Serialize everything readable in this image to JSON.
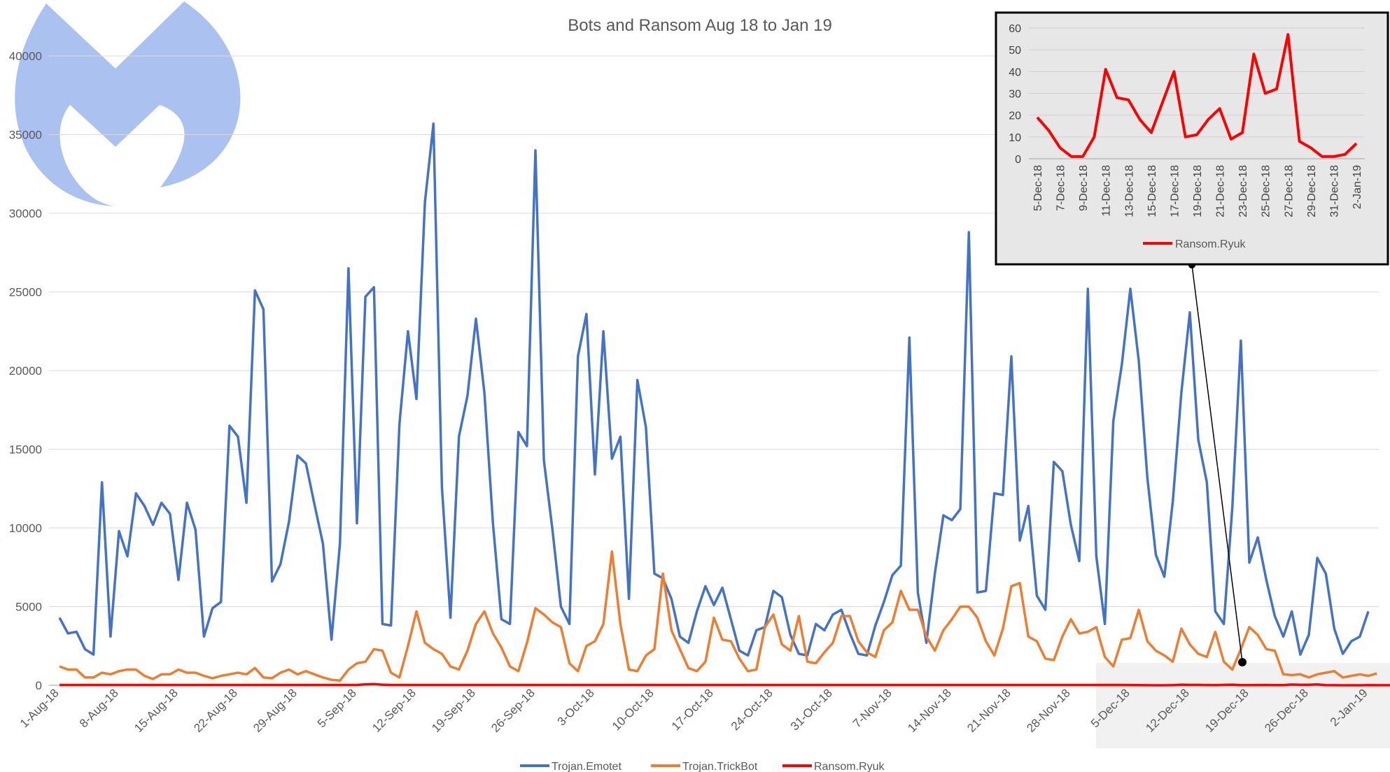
{
  "chart_data": [
    {
      "type": "line",
      "title": "Bots and Ransom Aug 18 to Jan 19",
      "x_tick_labels": [
        "1-Aug-18",
        "8-Aug-18",
        "15-Aug-18",
        "22-Aug-18",
        "29-Aug-18",
        "5-Sep-18",
        "12-Sep-18",
        "19-Sep-18",
        "26-Sep-18",
        "3-Oct-18",
        "10-Oct-18",
        "17-Oct-18",
        "24-Oct-18",
        "31-Oct-18",
        "7-Nov-18",
        "14-Nov-18",
        "21-Nov-18",
        "28-Nov-18",
        "5-Dec-18",
        "12-Dec-18",
        "19-Dec-18",
        "26-Dec-18",
        "2-Jan-19"
      ],
      "y_ticks": [
        0,
        5000,
        10000,
        15000,
        20000,
        25000,
        30000,
        35000,
        40000
      ],
      "y_tick_labels": [
        "0",
        "5000",
        "10000",
        "15000",
        "20000",
        "25000",
        "30000",
        "35000",
        "40000"
      ],
      "ylim": [
        0,
        40000
      ],
      "grid": true,
      "legend_position": "bottom",
      "series": [
        {
          "name": "Trojan.Emotet",
          "color": "#4472C4",
          "values": [
            4300,
            3300,
            3400,
            2300,
            1950,
            12900,
            3100,
            9800,
            8200,
            12200,
            11400,
            10200,
            11600,
            10900,
            6700,
            11600,
            9900,
            3100,
            4900,
            5300,
            16500,
            15800,
            11600,
            25100,
            23900,
            6600,
            7700,
            10400,
            14600,
            14100,
            11500,
            9000,
            2900,
            9000,
            26500,
            10300,
            24700,
            25300,
            3900,
            3800,
            16600,
            22500,
            18200,
            30700,
            35700,
            12600,
            4300,
            15800,
            18400,
            23300,
            18600,
            10300,
            4200,
            3900,
            16100,
            15200,
            34000,
            14300,
            9900,
            5000,
            3900,
            20900,
            23600,
            13400,
            22500,
            14400,
            15800,
            5500,
            19400,
            16400,
            7100,
            6800,
            5500,
            3100,
            2700,
            4700,
            6300,
            5100,
            6200,
            4200,
            2200,
            1900,
            3500,
            3700,
            6000,
            5600,
            3200,
            2000,
            1900,
            3900,
            3500,
            4500,
            4800,
            3300,
            2000,
            1900,
            3800,
            5300,
            7000,
            7600,
            22100,
            5900,
            2700,
            7100,
            10800,
            10500,
            11200,
            28800,
            5900,
            6000,
            12200,
            12100,
            20900,
            9200,
            11400,
            5700,
            4800,
            14200,
            13600,
            10200,
            7900,
            25200,
            8200,
            3900,
            16800,
            20400,
            25200,
            20600,
            13200,
            8300,
            6900,
            11700,
            18600,
            23700,
            15600,
            12900,
            4700,
            3900,
            11300,
            21900,
            7800,
            9400,
            6700,
            4400,
            3100,
            4700,
            1950,
            3200,
            8100,
            7100,
            3600,
            2000,
            2800,
            3100,
            4700
          ]
        },
        {
          "name": "Trojan.TrickBot",
          "color": "#ED7D31",
          "values": [
            1200,
            1000,
            1000,
            500,
            500,
            800,
            700,
            900,
            1000,
            1000,
            600,
            400,
            700,
            700,
            1000,
            800,
            800,
            600,
            450,
            600,
            700,
            800,
            700,
            1100,
            500,
            450,
            800,
            1000,
            700,
            900,
            700,
            500,
            350,
            300,
            1000,
            1400,
            1500,
            2300,
            2200,
            800,
            500,
            2500,
            4700,
            2700,
            2300,
            2000,
            1200,
            1000,
            2200,
            3900,
            4700,
            3300,
            2400,
            1200,
            900,
            2700,
            4900,
            4500,
            4000,
            3700,
            1400,
            900,
            2500,
            2800,
            3900,
            8500,
            3900,
            1000,
            900,
            1900,
            2300,
            7100,
            3500,
            2300,
            1100,
            900,
            1500,
            4300,
            2900,
            2800,
            1700,
            900,
            1000,
            3700,
            4500,
            2600,
            2200,
            4400,
            1500,
            1400,
            2100,
            2700,
            4400,
            4400,
            2800,
            2100,
            1800,
            3500,
            4000,
            6000,
            4800,
            4800,
            3100,
            2200,
            3500,
            4200,
            5000,
            5000,
            4300,
            2800,
            1900,
            3600,
            6300,
            6500,
            3100,
            2800,
            1700,
            1600,
            3100,
            4200,
            3300,
            3400,
            3700,
            1800,
            1200,
            2900,
            3000,
            4800,
            2800,
            2200,
            1900,
            1500,
            3600,
            2600,
            2000,
            1800,
            3400,
            1500,
            1000,
            2300,
            3700,
            3200,
            2300,
            2200,
            700,
            650,
            700,
            500,
            700,
            800,
            900,
            500,
            600,
            700,
            600,
            750
          ]
        },
        {
          "name": "Ransom.Ryuk",
          "color": "#FF0000",
          "values": [
            20,
            20,
            20,
            20,
            20,
            20,
            20,
            20,
            20,
            20,
            20,
            20,
            20,
            20,
            20,
            20,
            20,
            20,
            20,
            20,
            20,
            20,
            20,
            20,
            20,
            20,
            20,
            20,
            20,
            20,
            20,
            20,
            20,
            20,
            20,
            20,
            60,
            80,
            40,
            20,
            20,
            20,
            20,
            20,
            20,
            20,
            20,
            20,
            20,
            20,
            20,
            20,
            20,
            20,
            20,
            20,
            20,
            20,
            20,
            20,
            20,
            20,
            20,
            20,
            20,
            20,
            20,
            20,
            20,
            20,
            20,
            20,
            20,
            20,
            20,
            20,
            20,
            20,
            20,
            20,
            20,
            20,
            20,
            20,
            20,
            20,
            20,
            20,
            20,
            20,
            20,
            20,
            20,
            20,
            20,
            20,
            20,
            20,
            20,
            20,
            20,
            20,
            20,
            20,
            20,
            20,
            20,
            20,
            20,
            20,
            20,
            20,
            20,
            20,
            20,
            20,
            20,
            20,
            20,
            20,
            20,
            20,
            20,
            20,
            20,
            20,
            19,
            13,
            5,
            1,
            1,
            10,
            41,
            28,
            27,
            18,
            12,
            26,
            40,
            10,
            11,
            18,
            23,
            9,
            12,
            48,
            30,
            32,
            57,
            8,
            5,
            1,
            1,
            2,
            7,
            3,
            3,
            3,
            4,
            5,
            5,
            5,
            5
          ]
        }
      ]
    },
    {
      "type": "line",
      "title": "",
      "categories": [
        "5-Dec-18",
        "6-Dec-18",
        "7-Dec-18",
        "8-Dec-18",
        "9-Dec-18",
        "10-Dec-18",
        "11-Dec-18",
        "12-Dec-18",
        "13-Dec-18",
        "14-Dec-18",
        "15-Dec-18",
        "16-Dec-18",
        "17-Dec-18",
        "18-Dec-18",
        "19-Dec-18",
        "20-Dec-18",
        "21-Dec-18",
        "22-Dec-18",
        "23-Dec-18",
        "24-Dec-18",
        "25-Dec-18",
        "26-Dec-18",
        "27-Dec-18",
        "28-Dec-18",
        "29-Dec-18",
        "30-Dec-18",
        "31-Dec-18",
        "1-Jan-19",
        "2-Jan-19"
      ],
      "x_tick_labels": [
        "5-Dec-18",
        "7-Dec-18",
        "9-Dec-18",
        "11-Dec-18",
        "13-Dec-18",
        "15-Dec-18",
        "17-Dec-18",
        "19-Dec-18",
        "21-Dec-18",
        "23-Dec-18",
        "25-Dec-18",
        "27-Dec-18",
        "29-Dec-18",
        "31-Dec-18",
        "2-Jan-19"
      ],
      "y_ticks": [
        0,
        10,
        20,
        30,
        40,
        50,
        60
      ],
      "y_tick_labels": [
        "0",
        "10",
        "20",
        "30",
        "40",
        "50",
        "60"
      ],
      "ylim": [
        0,
        60
      ],
      "grid": true,
      "legend_position": "bottom",
      "series": [
        {
          "name": "Ransom.Ryuk",
          "color": "#FF0000",
          "values": [
            19,
            13,
            5,
            1,
            1,
            10,
            41,
            28,
            27,
            18,
            12,
            26,
            40,
            10,
            11,
            18,
            23,
            9,
            12,
            48,
            30,
            32,
            57,
            8,
            5,
            1,
            1,
            2,
            7
          ]
        }
      ]
    }
  ]
}
